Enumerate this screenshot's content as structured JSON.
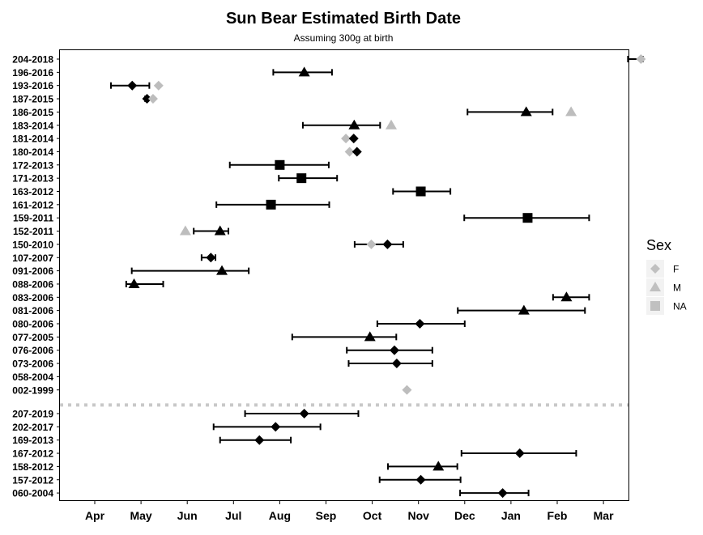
{
  "chart_data": {
    "type": "scatter",
    "title": "Sun Bear Estimated Birth Date",
    "subtitle": "Assuming 300g at birth",
    "x_ticks": [
      "Apr",
      "May",
      "Jun",
      "Jul",
      "Aug",
      "Sep",
      "Oct",
      "Nov",
      "Dec",
      "Jan",
      "Feb",
      "Mar"
    ],
    "x_range": [
      "Mar 14",
      "Mar 20 (next year)"
    ],
    "legend": {
      "title": "Sex",
      "placement": "right",
      "entries": [
        {
          "label": "F",
          "shape": "circle"
        },
        {
          "label": "M",
          "shape": "triangle"
        },
        {
          "label": "NA",
          "shape": "square"
        }
      ]
    },
    "colors": {
      "primary": "#000000",
      "secondary": "#bdbdbd",
      "separator": "#c8c8c8",
      "legend_key": "#c0c0c0"
    },
    "separator_after": "002-1999",
    "rows": [
      {
        "id": "204-2018",
        "points": [
          {
            "month": 11.81,
            "shape": "circle",
            "color": "gray"
          }
        ],
        "ci": [
          11.53,
          11.85
        ]
      },
      {
        "id": "196-2016",
        "points": [
          {
            "month": 4.53,
            "shape": "triangle",
            "color": "black"
          }
        ],
        "ci": [
          3.86,
          5.13
        ]
      },
      {
        "id": "193-2016",
        "points": [
          {
            "month": 0.81,
            "shape": "circle",
            "color": "black"
          },
          {
            "month": 1.38,
            "shape": "circle",
            "color": "gray"
          }
        ],
        "ci": [
          0.35,
          1.18
        ]
      },
      {
        "id": "187-2015",
        "points": [
          {
            "month": 1.13,
            "shape": "circle",
            "color": "black"
          },
          {
            "month": 1.26,
            "shape": "circle",
            "color": "gray"
          }
        ],
        "ci": [
          1.09,
          1.13
        ]
      },
      {
        "id": "186-2015",
        "points": [
          {
            "month": 9.33,
            "shape": "triangle",
            "color": "black"
          },
          {
            "month": 10.3,
            "shape": "triangle",
            "color": "gray"
          }
        ],
        "ci": [
          8.06,
          9.9
        ]
      },
      {
        "id": "183-2014",
        "points": [
          {
            "month": 5.61,
            "shape": "triangle",
            "color": "black"
          },
          {
            "month": 6.41,
            "shape": "triangle",
            "color": "gray"
          }
        ],
        "ci": [
          4.5,
          6.17
        ]
      },
      {
        "id": "181-2014",
        "points": [
          {
            "month": 5.43,
            "shape": "circle",
            "color": "gray"
          },
          {
            "month": 5.6,
            "shape": "circle",
            "color": "black"
          }
        ],
        "ci": null
      },
      {
        "id": "180-2014",
        "points": [
          {
            "month": 5.51,
            "shape": "circle",
            "color": "gray"
          },
          {
            "month": 5.67,
            "shape": "circle",
            "color": "black"
          }
        ],
        "ci": null
      },
      {
        "id": "172-2013",
        "points": [
          {
            "month": 4.0,
            "shape": "square",
            "color": "black"
          }
        ],
        "ci": [
          2.92,
          5.06
        ]
      },
      {
        "id": "171-2013",
        "points": [
          {
            "month": 4.47,
            "shape": "square",
            "color": "black"
          }
        ],
        "ci": [
          3.98,
          5.24
        ]
      },
      {
        "id": "163-2012",
        "points": [
          {
            "month": 7.05,
            "shape": "square",
            "color": "black"
          }
        ],
        "ci": [
          6.45,
          7.69
        ]
      },
      {
        "id": "161-2012",
        "points": [
          {
            "month": 3.81,
            "shape": "square",
            "color": "black"
          }
        ],
        "ci": [
          2.63,
          5.07
        ]
      },
      {
        "id": "159-2011",
        "points": [
          {
            "month": 9.36,
            "shape": "square",
            "color": "black"
          }
        ],
        "ci": [
          7.99,
          10.69
        ]
      },
      {
        "id": "152-2011",
        "points": [
          {
            "month": 1.96,
            "shape": "triangle",
            "color": "gray"
          },
          {
            "month": 2.71,
            "shape": "triangle",
            "color": "black"
          }
        ],
        "ci": [
          2.14,
          2.89
        ]
      },
      {
        "id": "150-2010",
        "points": [
          {
            "month": 5.98,
            "shape": "circle",
            "color": "gray"
          },
          {
            "month": 6.33,
            "shape": "circle",
            "color": "black"
          }
        ],
        "ci": [
          5.62,
          6.67
        ]
      },
      {
        "id": "107-2007",
        "points": [
          {
            "month": 2.51,
            "shape": "circle",
            "color": "black"
          }
        ],
        "ci": [
          2.31,
          2.61
        ]
      },
      {
        "id": "091-2006",
        "points": [
          {
            "month": 2.75,
            "shape": "triangle",
            "color": "black"
          }
        ],
        "ci": [
          0.8,
          3.33
        ]
      },
      {
        "id": "088-2006",
        "points": [
          {
            "month": 0.85,
            "shape": "triangle",
            "color": "black"
          }
        ],
        "ci": [
          0.68,
          1.48
        ]
      },
      {
        "id": "083-2006",
        "points": [
          {
            "month": 10.2,
            "shape": "triangle",
            "color": "black"
          }
        ],
        "ci": [
          9.91,
          10.69
        ]
      },
      {
        "id": "081-2006",
        "points": [
          {
            "month": 9.28,
            "shape": "triangle",
            "color": "black"
          }
        ],
        "ci": [
          7.85,
          10.6
        ]
      },
      {
        "id": "080-2006",
        "points": [
          {
            "month": 7.03,
            "shape": "circle",
            "color": "black"
          }
        ],
        "ci": [
          6.11,
          8.0
        ]
      },
      {
        "id": "077-2005",
        "points": [
          {
            "month": 5.95,
            "shape": "triangle",
            "color": "black"
          }
        ],
        "ci": [
          4.27,
          6.52
        ]
      },
      {
        "id": "076-2006",
        "points": [
          {
            "month": 6.48,
            "shape": "circle",
            "color": "black"
          }
        ],
        "ci": [
          5.45,
          7.3
        ]
      },
      {
        "id": "073-2006",
        "points": [
          {
            "month": 6.53,
            "shape": "circle",
            "color": "black"
          }
        ],
        "ci": [
          5.49,
          7.3
        ]
      },
      {
        "id": "058-2004",
        "points": [],
        "ci": null
      },
      {
        "id": "002-1999",
        "points": [
          {
            "month": 6.75,
            "shape": "circle",
            "color": "gray"
          }
        ],
        "ci": null
      },
      {
        "id": "207-2019",
        "points": [
          {
            "month": 4.53,
            "shape": "circle",
            "color": "black"
          }
        ],
        "ci": [
          3.25,
          5.7
        ]
      },
      {
        "id": "202-2017",
        "points": [
          {
            "month": 3.91,
            "shape": "circle",
            "color": "black"
          }
        ],
        "ci": [
          2.57,
          4.88
        ]
      },
      {
        "id": "169-2013",
        "points": [
          {
            "month": 3.56,
            "shape": "circle",
            "color": "black"
          }
        ],
        "ci": [
          2.71,
          4.24
        ]
      },
      {
        "id": "167-2012",
        "points": [
          {
            "month": 9.19,
            "shape": "circle",
            "color": "black"
          }
        ],
        "ci": [
          7.93,
          10.41
        ]
      },
      {
        "id": "158-2012",
        "points": [
          {
            "month": 7.43,
            "shape": "triangle",
            "color": "black"
          }
        ],
        "ci": [
          6.34,
          7.84
        ]
      },
      {
        "id": "157-2012",
        "points": [
          {
            "month": 7.05,
            "shape": "circle",
            "color": "black"
          }
        ],
        "ci": [
          6.16,
          7.91
        ]
      },
      {
        "id": "060-2004",
        "points": [
          {
            "month": 8.82,
            "shape": "circle",
            "color": "black"
          }
        ],
        "ci": [
          7.9,
          9.38
        ]
      }
    ]
  }
}
